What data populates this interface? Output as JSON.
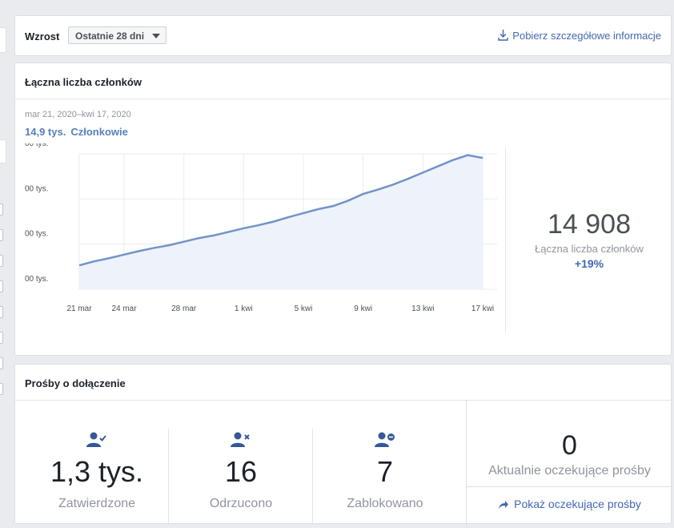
{
  "growth": {
    "title": "Wzrost",
    "range_selected": "Ostatnie 28 dni",
    "download_label": "Pobierz szczegółowe informacje"
  },
  "members": {
    "title": "Łączna liczba członków",
    "date_range": "mar 21, 2020–kwi 17, 2020",
    "summary_value": "14,9 tys.",
    "summary_label": "Członkowie",
    "total": "14 908",
    "total_caption": "Łączna liczba członków",
    "change": "+19%"
  },
  "chart_data": {
    "type": "area",
    "title": "",
    "xlabel": "",
    "ylabel": "",
    "y_tick_labels": [
      "00 tys.",
      "00 tys.",
      "00 tys.",
      "00 tys."
    ],
    "x_tick_labels": [
      "21 mar",
      "24 mar",
      "28 mar",
      "1 kwi",
      "5 kwi",
      "9 kwi",
      "13 kwi",
      "17 kwi"
    ],
    "x": [
      "2020-03-21",
      "2020-03-22",
      "2020-03-23",
      "2020-03-24",
      "2020-03-25",
      "2020-03-26",
      "2020-03-27",
      "2020-03-28",
      "2020-03-29",
      "2020-03-30",
      "2020-03-31",
      "2020-04-01",
      "2020-04-02",
      "2020-04-03",
      "2020-04-04",
      "2020-04-05",
      "2020-04-06",
      "2020-04-07",
      "2020-04-08",
      "2020-04-09",
      "2020-04-10",
      "2020-04-11",
      "2020-04-12",
      "2020-04-13",
      "2020-04-14",
      "2020-04-15",
      "2020-04-16",
      "2020-04-17"
    ],
    "series": [
      {
        "values": [
          12500,
          12590,
          12660,
          12740,
          12820,
          12890,
          12950,
          13030,
          13110,
          13170,
          13250,
          13330,
          13400,
          13480,
          13580,
          13670,
          13760,
          13830,
          13950,
          14100,
          14200,
          14310,
          14440,
          14580,
          14720,
          14860,
          14970,
          14908
        ]
      }
    ],
    "ylim": [
      12000,
      15000
    ],
    "grid": true,
    "legend": "none",
    "line_color": "#7293c9",
    "fill_color": "#eef2fa"
  },
  "requests": {
    "title": "Prośby o dołączenie",
    "approved_value": "1,3 tys.",
    "approved_label": "Zatwierdzone",
    "rejected_value": "16",
    "rejected_label": "Odrzucono",
    "blocked_value": "7",
    "blocked_label": "Zablokowano",
    "pending_value": "0",
    "pending_label": "Aktualnie oczekujące prośby",
    "pending_link": "Pokaż oczekujące prośby"
  }
}
